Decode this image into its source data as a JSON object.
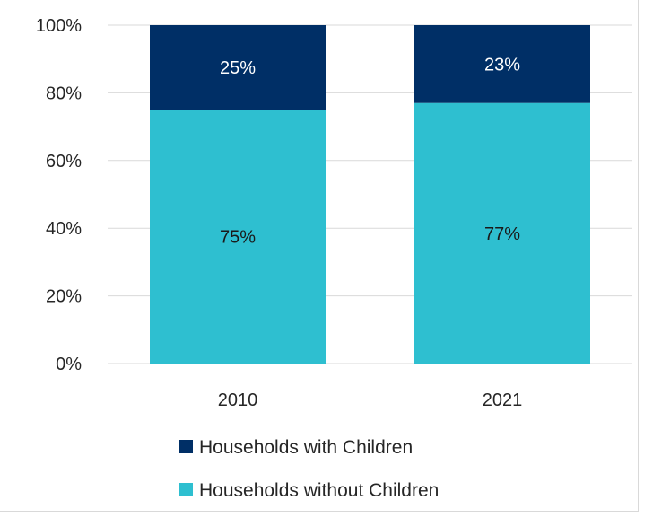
{
  "chart_data": {
    "type": "bar",
    "stacked": true,
    "categories": [
      "2010",
      "2021"
    ],
    "series": [
      {
        "name": "Households without Children",
        "values": [
          75,
          77
        ],
        "labels": [
          "75%",
          "77%"
        ],
        "color": "#2ebfd0",
        "label_color": "#1a1a1a"
      },
      {
        "name": "Households with Children",
        "values": [
          25,
          23
        ],
        "labels": [
          "25%",
          "23%"
        ],
        "color": "#002f66",
        "label_color": "#ffffff"
      }
    ],
    "ylim": [
      0,
      100
    ],
    "yticks": [
      0,
      20,
      40,
      60,
      80,
      100
    ],
    "ytick_labels": [
      "0%",
      "20%",
      "40%",
      "60%",
      "80%",
      "100%"
    ],
    "grid": true,
    "legend": {
      "position": "bottom",
      "entries": [
        "Households with Children",
        "Households without Children"
      ]
    }
  }
}
